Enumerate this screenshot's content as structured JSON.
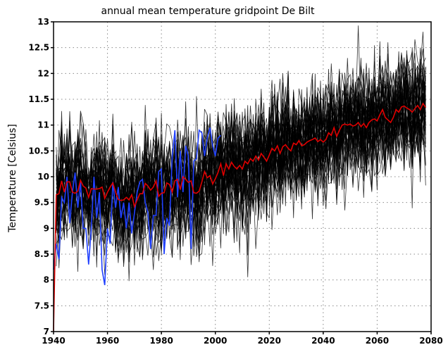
{
  "chart_data": {
    "type": "line",
    "title": "annual mean temperature gridpoint De Bilt",
    "xlabel": "",
    "ylabel": "Temperature [Celsius]",
    "xlim": [
      1940,
      2080
    ],
    "ylim": [
      7,
      13
    ],
    "xticks": [
      "1940",
      "1960",
      "1980",
      "2000",
      "2020",
      "2040",
      "2060",
      "2080"
    ],
    "yticks": [
      "7",
      "7.5",
      "8",
      "8.5",
      "9",
      "9.5",
      "10",
      "10.5",
      "11",
      "11.5",
      "12",
      "12.5",
      "13"
    ],
    "grid": true,
    "colors": {
      "ensemble": "#000000",
      "mean": "#e00000",
      "observed": "#2040ff"
    },
    "series": [
      {
        "role": "ensemble-mean",
        "x_start": 1940,
        "values": [
          7.0,
          9.65,
          9.67,
          9.92,
          9.7,
          9.9,
          9.9,
          9.7,
          9.68,
          9.72,
          9.93,
          9.82,
          9.78,
          9.6,
          9.77,
          9.76,
          9.76,
          9.77,
          9.8,
          9.58,
          9.7,
          9.8,
          9.88,
          9.7,
          9.56,
          9.54,
          9.55,
          9.6,
          9.55,
          9.65,
          9.42,
          9.55,
          9.67,
          9.67,
          9.87,
          9.82,
          9.74,
          9.8,
          9.92,
          9.62,
          9.68,
          9.69,
          9.88,
          9.85,
          9.7,
          9.92,
          9.95,
          9.75,
          10.0,
          9.95,
          9.89,
          9.92,
          9.69,
          9.68,
          9.72,
          9.9,
          10.1,
          9.98,
          10.02,
          9.86,
          9.96,
          10.08,
          10.25,
          10.02,
          10.25,
          10.15,
          10.28,
          10.2,
          10.15,
          10.22,
          10.15,
          10.3,
          10.25,
          10.35,
          10.3,
          10.4,
          10.32,
          10.45,
          10.38,
          10.3,
          10.42,
          10.55,
          10.5,
          10.6,
          10.45,
          10.58,
          10.62,
          10.55,
          10.5,
          10.65,
          10.62,
          10.7,
          10.6,
          10.62,
          10.67,
          10.7,
          10.72,
          10.75,
          10.68,
          10.72,
          10.67,
          10.72,
          10.85,
          10.8,
          10.95,
          10.78,
          10.9,
          11.0,
          11.02,
          11.0,
          11.02,
          10.98,
          11.0,
          11.05,
          10.97,
          11.03,
          10.95,
          11.05,
          11.1,
          11.12,
          11.08,
          11.2,
          11.3,
          11.15,
          11.1,
          11.05,
          11.15,
          11.3,
          11.25,
          11.35,
          11.37,
          11.33,
          11.3,
          11.25,
          11.32,
          11.38,
          11.3,
          11.42,
          11.34
        ]
      },
      {
        "role": "observed",
        "x_start": 1940,
        "values": [
          8.2,
          8.7,
          8.4,
          9.6,
          9.5,
          10.0,
          9.1,
          9.7,
          10.08,
          9.4,
          9.9,
          9.0,
          9.0,
          8.3,
          9.0,
          10.0,
          9.2,
          9.7,
          8.2,
          7.9,
          9.0,
          8.7,
          9.9,
          9.4,
          9.8,
          9.2,
          9.5,
          9.0,
          9.5,
          8.9,
          9.3,
          9.7,
          9.9,
          9.95,
          9.5,
          9.3,
          8.6,
          9.25,
          9.25,
          10.1,
          10.15,
          8.5,
          9.2,
          9.05,
          10.4,
          10.9,
          9.6,
          10.5,
          9.7,
          10.6,
          10.4,
          8.6,
          10.3,
          10.35,
          10.9,
          10.85,
          10.4,
          10.75,
          10.95,
          10.6,
          10.4,
          10.75,
          10.8
        ]
      }
    ]
  }
}
